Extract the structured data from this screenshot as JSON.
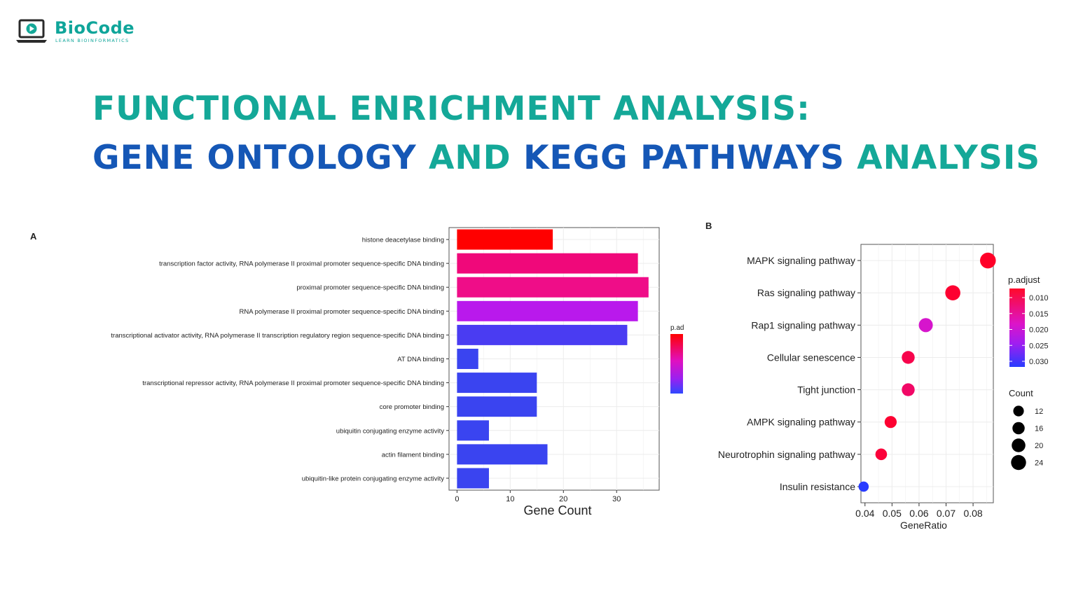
{
  "logo": {
    "name": "BioCode",
    "tagline": "LEARN BIOINFORMATICS"
  },
  "title": {
    "line1": "FUNCTIONAL ENRICHMENT ANALYSIS:",
    "line2": [
      {
        "text": "GENE ONTOLOGY ",
        "color": "blue"
      },
      {
        "text": "AND ",
        "color": "teal"
      },
      {
        "text": "KEGG PATHWAYS ",
        "color": "blue"
      },
      {
        "text": "ANALYSIS",
        "color": "teal"
      }
    ]
  },
  "colors": {
    "teal": "#14a898",
    "blue": "#1557b6"
  },
  "chart_data": [
    {
      "panel": "A",
      "type": "bar",
      "orientation": "horizontal",
      "xlabel": "Gene Count",
      "xticks": [
        0,
        10,
        20,
        30
      ],
      "xlim": [
        -1.5,
        38
      ],
      "legend_title": "p.ad",
      "grid": true,
      "categories": [
        "histone deacetylase binding",
        "transcription factor activity, RNA polymerase II proximal promoter sequence-specific DNA binding",
        "proximal promoter sequence-specific DNA binding",
        "RNA polymerase II proximal promoter sequence-specific DNA binding",
        "transcriptional activator activity, RNA polymerase II transcription regulatory region sequence-specific DNA binding",
        "AT DNA binding",
        "transcriptional repressor activity, RNA polymerase II proximal promoter sequence-specific DNA binding",
        "core promoter binding",
        "ubiquitin conjugating enzyme activity",
        "actin filament binding",
        "ubiquitin-like protein conjugating enzyme activity"
      ],
      "values": [
        18,
        34,
        36,
        34,
        32,
        4,
        15,
        15,
        6,
        17,
        6
      ],
      "bar_colors": [
        "#ff0000",
        "#f0087a",
        "#ef0d88",
        "#b919ec",
        "#4a3cf2",
        "#3a44f0",
        "#3a44f0",
        "#3a44f0",
        "#3a44f0",
        "#3a44f0",
        "#3a44f0"
      ]
    },
    {
      "panel": "B",
      "type": "scatter",
      "xlabel": "GeneRatio",
      "xticks": [
        0.04,
        0.05,
        0.06,
        0.07,
        0.08
      ],
      "xlim": [
        0.0385,
        0.0875
      ],
      "grid": true,
      "categories": [
        "MAPK signaling pathway",
        "Ras signaling pathway",
        "Rap1 signaling pathway",
        "Cellular senescence",
        "Tight junction",
        "AMPK signaling pathway",
        "Neurotrophin signaling pathway",
        "Insulin resistance"
      ],
      "x": [
        0.0855,
        0.0725,
        0.0625,
        0.056,
        0.056,
        0.0495,
        0.046,
        0.0395
      ],
      "count": [
        24,
        22,
        19,
        16,
        16,
        14,
        13,
        10
      ],
      "p_adjust": [
        0.0095,
        0.0105,
        0.0195,
        0.012,
        0.0135,
        0.0105,
        0.011,
        0.031
      ],
      "legend": {
        "color_title": "p.adjust",
        "color_ticks": [
          0.01,
          0.015,
          0.02,
          0.025,
          0.03
        ],
        "color_tick_labels": [
          "0.010",
          "0.015",
          "0.020",
          "0.025",
          "0.030"
        ],
        "size_title": "Count",
        "size_ticks": [
          12,
          16,
          20,
          24
        ]
      }
    }
  ]
}
